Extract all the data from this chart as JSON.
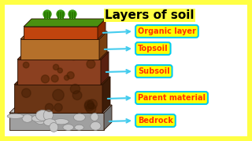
{
  "title": "Layers of soil",
  "bg_color": "#ffff44",
  "white_bg": "#ffffff",
  "layers": [
    {
      "label": "Organic layer",
      "face_color": "#c1440e",
      "top_color": "#5a8a1a",
      "side_color": "#8b2a00",
      "label_color": "#ff3300",
      "box_fill": "#ffff00",
      "box_edge": "#00ccee"
    },
    {
      "label": "Topsoil",
      "face_color": "#b5702a",
      "top_color": "#a06030",
      "side_color": "#7a4010",
      "label_color": "#ff3300",
      "box_fill": "#ffff00",
      "box_edge": "#00ccee"
    },
    {
      "label": "Subsoil",
      "face_color": "#8b4020",
      "top_color": "#7a3518",
      "side_color": "#5a2010",
      "label_color": "#ff3300",
      "box_fill": "#ffff00",
      "box_edge": "#00ccee"
    },
    {
      "label": "Parent material",
      "face_color": "#6b3515",
      "top_color": "#5a2c10",
      "side_color": "#3d1c08",
      "label_color": "#ff3300",
      "box_fill": "#ffff00",
      "box_edge": "#00ccee"
    },
    {
      "label": "Bedrock",
      "face_color": "#a0a0a0",
      "top_color": "#c0c0c0",
      "side_color": "#707070",
      "label_color": "#ff3300",
      "box_fill": "#ffff00",
      "box_edge": "#00ccee"
    }
  ],
  "arrow_color": "#44ccee",
  "title_fontsize": 11,
  "label_fontsize": 7
}
